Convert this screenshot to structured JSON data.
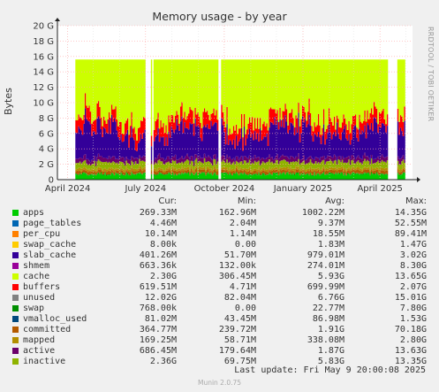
{
  "chart_data": {
    "type": "area",
    "title": "Memory usage - by year",
    "ylabel": "Bytes",
    "y_ticks": [
      "0",
      "2 G",
      "4 G",
      "6 G",
      "8 G",
      "10 G",
      "12 G",
      "14 G",
      "16 G",
      "18 G",
      "20 G"
    ],
    "y_tick_values_gb": [
      0,
      2,
      4,
      6,
      8,
      10,
      12,
      14,
      16,
      18,
      20
    ],
    "ylim_gb": [
      0,
      20
    ],
    "x_ticks": [
      "April 2024",
      "July 2024",
      "October 2024",
      "January 2025",
      "April 2025"
    ],
    "x_range": [
      "2024-03-20",
      "2025-05-09"
    ],
    "grid": true,
    "side_text": "RRDTOOL / TOBI OETIKER",
    "legend_headers": [
      "Cur:",
      "Min:",
      "Avg:",
      "Max:"
    ],
    "series": [
      {
        "name": "apps",
        "color": "#00cc00",
        "cur": "269.33M",
        "min": "162.96M",
        "avg": "1002.22M",
        "max": "14.35G"
      },
      {
        "name": "page_tables",
        "color": "#0066b3",
        "cur": "4.46M",
        "min": "2.04M",
        "avg": "9.37M",
        "max": "52.55M"
      },
      {
        "name": "per_cpu",
        "color": "#ff8000",
        "cur": "10.14M",
        "min": "1.14M",
        "avg": "18.55M",
        "max": "89.41M"
      },
      {
        "name": "swap_cache",
        "color": "#ffcc00",
        "cur": "8.00k",
        "min": "0.00",
        "avg": "1.83M",
        "max": "1.47G"
      },
      {
        "name": "slab_cache",
        "color": "#330099",
        "cur": "401.26M",
        "min": "51.70M",
        "avg": "979.01M",
        "max": "3.02G"
      },
      {
        "name": "shmem",
        "color": "#990099",
        "cur": "663.36k",
        "min": "132.00k",
        "avg": "274.01M",
        "max": "8.30G"
      },
      {
        "name": "cache",
        "color": "#ccff00",
        "cur": "2.30G",
        "min": "306.45M",
        "avg": "5.93G",
        "max": "13.65G"
      },
      {
        "name": "buffers",
        "color": "#ff0000",
        "cur": "619.51M",
        "min": "4.71M",
        "avg": "699.99M",
        "max": "2.07G"
      },
      {
        "name": "unused",
        "color": "#808080",
        "cur": "12.02G",
        "min": "82.04M",
        "avg": "6.76G",
        "max": "15.01G"
      },
      {
        "name": "swap",
        "color": "#008f00",
        "cur": "768.00k",
        "min": "0.00",
        "avg": "22.77M",
        "max": "7.80G"
      },
      {
        "name": "vmalloc_used",
        "color": "#00487d",
        "cur": "81.02M",
        "min": "43.45M",
        "avg": "86.98M",
        "max": "1.53G"
      },
      {
        "name": "committed",
        "color": "#b35a00",
        "cur": "364.77M",
        "min": "239.72M",
        "avg": "1.91G",
        "max": "70.18G"
      },
      {
        "name": "mapped",
        "color": "#b38f00",
        "cur": "169.25M",
        "min": "58.71M",
        "avg": "338.08M",
        "max": "2.80G"
      },
      {
        "name": "active",
        "color": "#6b006b",
        "cur": "686.45M",
        "min": "179.64M",
        "avg": "1.87G",
        "max": "13.63G"
      },
      {
        "name": "inactive",
        "color": "#8fb300",
        "cur": "2.36G",
        "min": "69.75M",
        "avg": "5.83G",
        "max": "13.35G"
      }
    ],
    "last_update": "Last update: Fri May  9 20:00:08 2025",
    "footer": "Munin 2.0.75"
  }
}
